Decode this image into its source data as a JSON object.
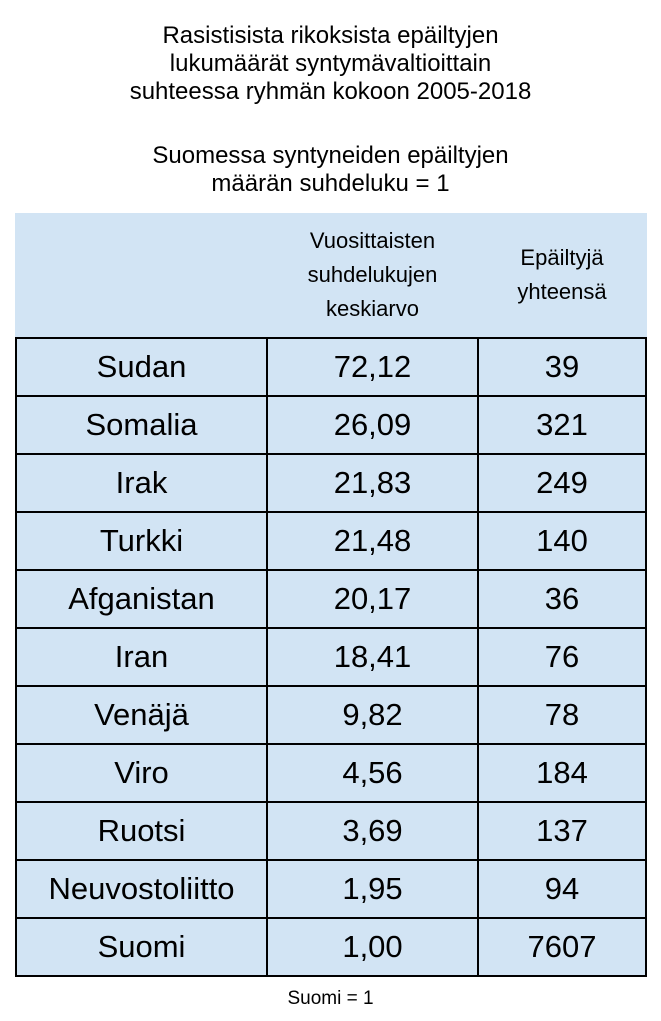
{
  "title": {
    "lines": [
      "Rasistisista rikoksista epäiltyjen",
      "lukumäärät syntymävaltioittain",
      "suhteessa ryhmän kokoon 2005-2018"
    ]
  },
  "subtitle": {
    "lines": [
      "Suomessa syntyneiden epäiltyjen",
      "määrän suhdeluku = 1"
    ]
  },
  "table": {
    "header": [
      [
        "Vuosittaisten",
        "suhdelukujen",
        "keskiarvo"
      ],
      [
        "Epäiltyjä",
        "yhteensä"
      ]
    ],
    "rows": [
      [
        "Sudan",
        "72,12",
        "39"
      ],
      [
        "Somalia",
        "26,09",
        "321"
      ],
      [
        "Irak",
        "21,83",
        "249"
      ],
      [
        "Turkki",
        "21,48",
        "140"
      ],
      [
        "Afganistan",
        "20,17",
        "36"
      ],
      [
        "Iran",
        "18,41",
        "76"
      ],
      [
        "Venäjä",
        "9,82",
        "78"
      ],
      [
        "Viro",
        "4,56",
        "184"
      ],
      [
        "Ruotsi",
        "3,69",
        "137"
      ],
      [
        "Neuvostoliitto",
        "1,95",
        "94"
      ],
      [
        "Suomi",
        "1,00",
        "7607"
      ]
    ]
  },
  "footnote": "Suomi = 1"
}
